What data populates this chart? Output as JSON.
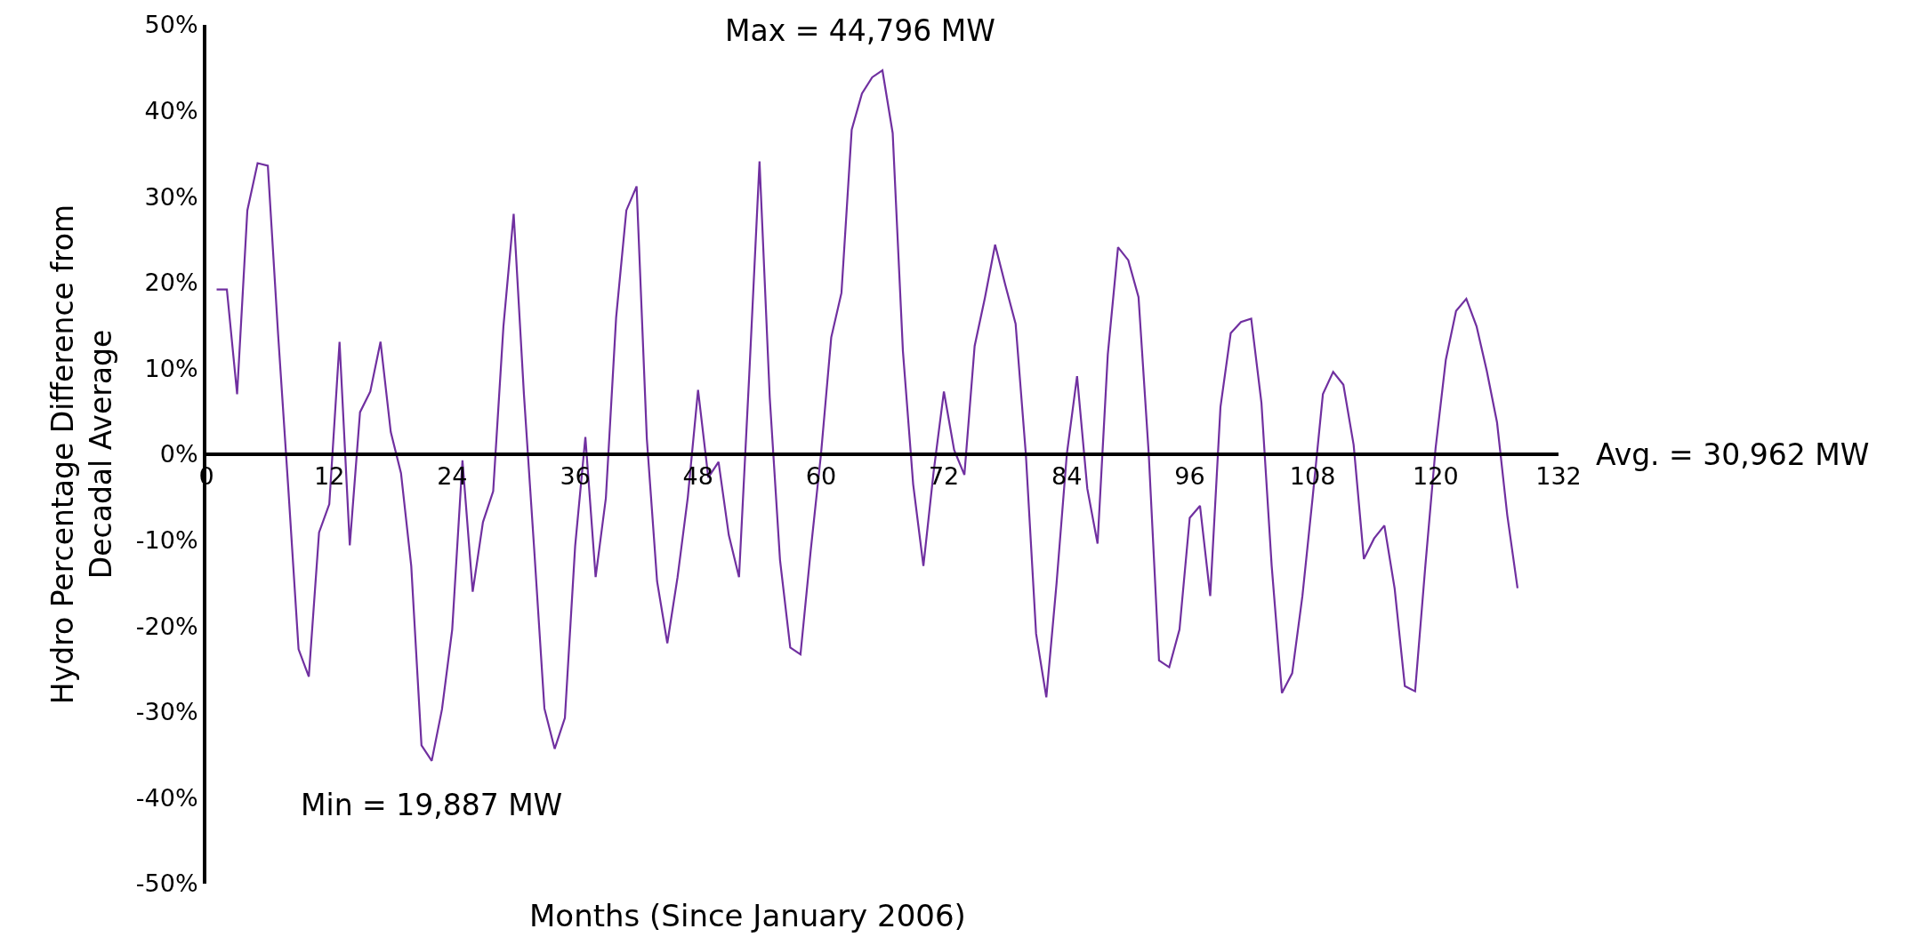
{
  "chart_data": {
    "type": "line",
    "xlabel": "Months (Since January 2006)",
    "ylabel": "Hydro Percentage Difference from\nDecadal Average",
    "annotations": [
      "Max = 44,796 MW",
      "Min = 19,887 MW",
      "Avg. = 30,962 MW"
    ],
    "x": [
      1,
      2,
      3,
      4,
      5,
      6,
      7,
      8,
      9,
      10,
      11,
      12,
      13,
      14,
      15,
      16,
      17,
      18,
      19,
      20,
      21,
      22,
      23,
      24,
      25,
      26,
      27,
      28,
      29,
      30,
      31,
      32,
      33,
      34,
      35,
      36,
      37,
      38,
      39,
      40,
      41,
      42,
      43,
      44,
      45,
      46,
      47,
      48,
      49,
      50,
      51,
      52,
      53,
      54,
      55,
      56,
      57,
      58,
      59,
      60,
      61,
      62,
      63,
      64,
      65,
      66,
      67,
      68,
      69,
      70,
      71,
      72,
      73,
      74,
      75,
      76,
      77,
      78,
      79,
      80,
      81,
      82,
      83,
      84,
      85,
      86,
      87,
      88,
      89,
      90,
      91,
      92,
      93,
      94,
      95,
      96,
      97,
      98,
      99,
      100,
      101,
      102,
      103,
      104,
      105,
      106,
      107,
      108,
      109,
      110,
      111,
      112,
      113,
      114,
      115,
      116,
      117,
      118,
      119,
      120,
      121,
      122,
      123,
      124,
      125,
      126,
      127,
      128
    ],
    "series": [
      {
        "color": "#7030a0",
        "values": [
          19.2,
          19.2,
          7.0,
          28.4,
          33.9,
          33.6,
          14,
          -4,
          -22.7,
          -25.9,
          -9.1,
          -5.8,
          13.1,
          -10.6,
          4.9,
          7.3,
          13.1,
          2.6,
          -2.2,
          -13,
          -33.9,
          -35.7,
          -29.7,
          -20.4,
          -0.7,
          -16,
          -7.9,
          -4.3,
          14.9,
          28,
          7,
          -11,
          -29.6,
          -34.3,
          -30.7,
          -10.7,
          2.0,
          -14.3,
          -5.1,
          15.9,
          28.4,
          31.2,
          1.8,
          -14.8,
          -22,
          -14.3,
          -5,
          7.5,
          -2.7,
          -0.9,
          -9.4,
          -14.3,
          9.3,
          34.1,
          6.6,
          -12.3,
          -22.5,
          -23.3,
          -11.2,
          0,
          13.6,
          18.8,
          37.8,
          42,
          43.9,
          44.7,
          37.4,
          12,
          -3.5,
          -13,
          -2,
          7.3,
          0.5,
          -2.4,
          12.6,
          18.2,
          24.4,
          19.7,
          15.2,
          0,
          -20.9,
          -28.3,
          -15,
          0,
          9.1,
          -4,
          -10.4,
          11.6,
          24.1,
          22.6,
          18.3,
          0,
          -24,
          -24.8,
          -20.4,
          -7.4,
          -6,
          -16.5,
          5.5,
          14.1,
          15.4,
          15.8,
          6,
          -13,
          -27.8,
          -25.5,
          -16.5,
          -5,
          7.0,
          9.6,
          8.1,
          1.1,
          -12.2,
          -9.8,
          -8.3,
          -15.6,
          -27,
          -27.6,
          -13,
          0.7,
          11.0,
          16.7,
          18.1,
          14.9,
          9.7,
          3.7,
          -7.1,
          -15.6
        ]
      }
    ],
    "xlim": [
      0,
      132
    ],
    "xticks": [
      0,
      12,
      24,
      36,
      48,
      60,
      72,
      84,
      96,
      108,
      120,
      132
    ],
    "ylim": [
      -50,
      50
    ],
    "yticks": [
      {
        "value": -50,
        "label": "-50%"
      },
      {
        "value": -40,
        "label": "-40%"
      },
      {
        "value": -30,
        "label": "-30%"
      },
      {
        "value": -20,
        "label": "-20%"
      },
      {
        "value": -10,
        "label": "-10%"
      },
      {
        "value": 0,
        "label": "0%"
      },
      {
        "value": 10,
        "label": "10%"
      },
      {
        "value": 20,
        "label": "20%"
      },
      {
        "value": 30,
        "label": "30%"
      },
      {
        "value": 40,
        "label": "40%"
      },
      {
        "value": 50,
        "label": "50%"
      }
    ],
    "line_style": "solid"
  }
}
